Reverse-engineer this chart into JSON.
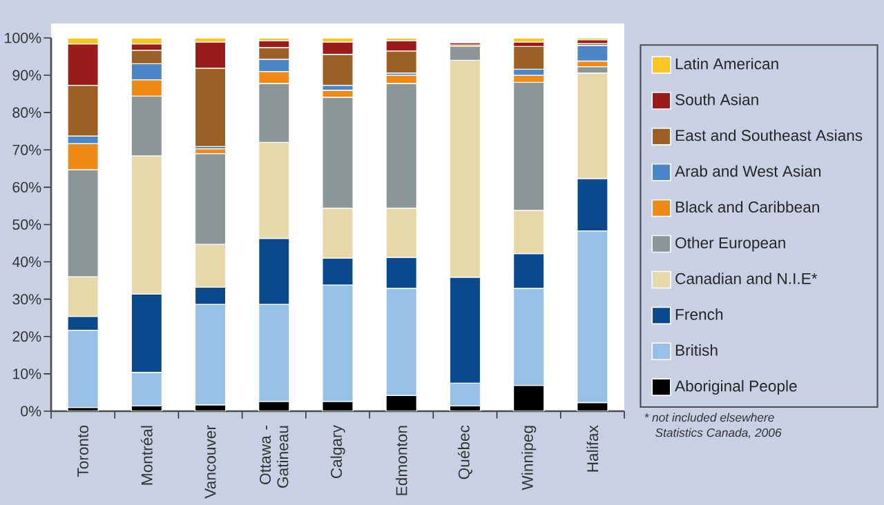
{
  "chart_data": {
    "type": "bar",
    "stacked": true,
    "categories": [
      "Toronto",
      "Montréal",
      "Vancouver",
      "Ottawa - Gatineau",
      "Calgary",
      "Edmonton",
      "Québec",
      "Winnipeg",
      "Halifax"
    ],
    "ylim": [
      0,
      100
    ],
    "yticks": [
      {
        "value": 0,
        "label": "0%"
      },
      {
        "value": 10,
        "label": "10%"
      },
      {
        "value": 20,
        "label": "20%"
      },
      {
        "value": 30,
        "label": "30%"
      },
      {
        "value": 40,
        "label": "40%"
      },
      {
        "value": 50,
        "label": "50%"
      },
      {
        "value": 60,
        "label": "60%"
      },
      {
        "value": 70,
        "label": "70%"
      },
      {
        "value": 80,
        "label": "80%"
      },
      {
        "value": 90,
        "label": "90%"
      },
      {
        "value": 100,
        "label": "100%"
      }
    ],
    "series": [
      {
        "name": "Aboriginal People",
        "color": "#000000",
        "values": [
          1.0,
          1.4,
          1.7,
          2.6,
          2.6,
          4.2,
          1.4,
          6.9,
          2.3
        ]
      },
      {
        "name": "British",
        "color": "#96c0e6",
        "values": [
          20.7,
          9.0,
          26.9,
          26.0,
          31.2,
          28.7,
          6.1,
          26.0,
          46.0
        ]
      },
      {
        "name": "French",
        "color": "#0a4a8c",
        "values": [
          3.7,
          21.0,
          4.6,
          17.7,
          7.2,
          8.3,
          28.4,
          9.3,
          14.0
        ]
      },
      {
        "name": "Canadian and N.I.E*",
        "color": "#e6d8a8",
        "values": [
          10.6,
          37.0,
          11.5,
          25.7,
          13.4,
          13.2,
          58.1,
          11.6,
          28.3
        ]
      },
      {
        "name": "Other European",
        "color": "#8a9698",
        "values": [
          28.7,
          16.0,
          24.3,
          15.8,
          29.7,
          33.4,
          3.7,
          34.3,
          1.7
        ]
      },
      {
        "name": "Black and Caribbean",
        "color": "#ef8a16",
        "values": [
          7.0,
          4.4,
          1.3,
          3.2,
          1.9,
          2.2,
          0.4,
          1.9,
          1.5
        ]
      },
      {
        "name": "Arab and West Asian",
        "color": "#4a86c8",
        "values": [
          2.0,
          4.3,
          0.6,
          3.3,
          1.3,
          0.6,
          null,
          1.6,
          4.2
        ]
      },
      {
        "name": "East and Southeast Asians",
        "color": "#9c6026",
        "values": [
          13.6,
          3.6,
          21.0,
          3.1,
          8.3,
          5.9,
          null,
          6.1,
          0.5
        ]
      },
      {
        "name": "South Asian",
        "color": "#9b1b1b",
        "values": [
          11.1,
          1.7,
          7.0,
          1.9,
          3.3,
          2.8,
          0.6,
          1.2,
          1.0
        ]
      },
      {
        "name": "Latin American",
        "color": "#f9c623",
        "values": [
          1.6,
          1.6,
          1.1,
          0.7,
          1.1,
          0.7,
          null,
          1.1,
          0.5
        ]
      }
    ],
    "legend": "right",
    "annotations": [
      "* not included elsewhere",
      "Statistics Canada, 2006"
    ]
  }
}
